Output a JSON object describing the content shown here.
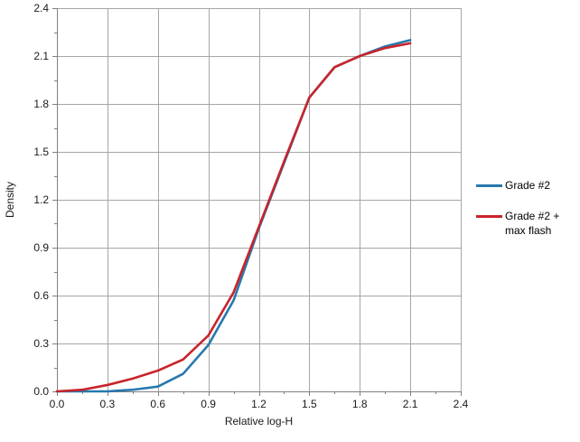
{
  "chart": {
    "legend": [
      {
        "label": "Grade #2",
        "label_lines": [
          "Grade #2"
        ],
        "color": "#2878AE"
      },
      {
        "label": "Grade #2 + max flash",
        "label_lines": [
          "Grade #2 +",
          "max flash"
        ],
        "color": "#C9232B"
      }
    ]
  },
  "chart_data": {
    "type": "line",
    "title": "",
    "xlabel": "Relative log-H",
    "ylabel": "Density",
    "xlim": [
      0,
      2.4
    ],
    "ylim": [
      0,
      2.4
    ],
    "x_tick_step": 0.3,
    "y_tick_step": 0.3,
    "minor_tick_step": 0.15,
    "tick_label_format_decimals": 1,
    "grid": true,
    "legend_position": "right",
    "grid_color": "#A6A6A6",
    "axis_color": "#808080",
    "text_color": "#1a1a1a",
    "x": [
      0.0,
      0.15,
      0.3,
      0.45,
      0.6,
      0.75,
      0.9,
      1.05,
      1.2,
      1.35,
      1.5,
      1.65,
      1.8,
      1.95,
      2.1
    ],
    "series": [
      {
        "name": "Grade #2",
        "color": "#2878AE",
        "values": [
          0.0,
          0.0,
          0.0,
          0.01,
          0.03,
          0.11,
          0.29,
          0.57,
          1.02,
          1.43,
          1.84,
          2.03,
          2.1,
          2.16,
          2.2
        ]
      },
      {
        "name": "Grade #2 + max flash",
        "color": "#C9232B",
        "values": [
          0.0,
          0.01,
          0.04,
          0.08,
          0.13,
          0.2,
          0.35,
          0.62,
          1.03,
          1.44,
          1.84,
          2.03,
          2.1,
          2.15,
          2.18
        ]
      }
    ]
  }
}
